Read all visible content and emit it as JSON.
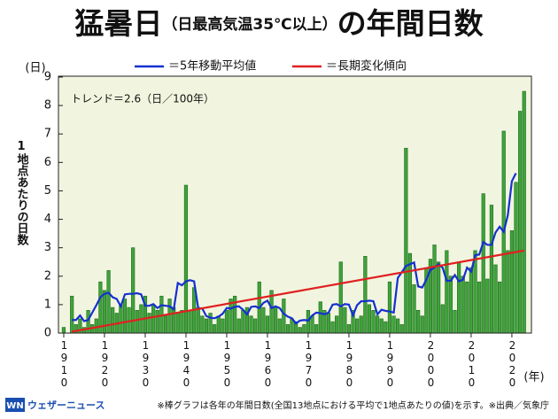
{
  "chart_data": {
    "type": "bar",
    "title": "猛暑日",
    "title_paren": "（日最高気温35℃以上）",
    "title_tail": "の年間日数",
    "y_label": "1地点あたりの日数",
    "y_unit": "(日)",
    "x_unit": "(年)",
    "annotation": "トレンド＝2.6（日／100年）",
    "footnote": "※棒グラフは各年の年間日数(全国13地点における平均で1地点あたりの値)を示す。※出典／気象庁",
    "logo_mark": "WN",
    "logo_text": "ウェザーニュース",
    "x": [
      1910,
      1911,
      1912,
      1913,
      1914,
      1915,
      1916,
      1917,
      1918,
      1919,
      1920,
      1921,
      1922,
      1923,
      1924,
      1925,
      1926,
      1927,
      1928,
      1929,
      1930,
      1931,
      1932,
      1933,
      1934,
      1935,
      1936,
      1937,
      1938,
      1939,
      1940,
      1941,
      1942,
      1943,
      1944,
      1945,
      1946,
      1947,
      1948,
      1949,
      1950,
      1951,
      1952,
      1953,
      1954,
      1955,
      1956,
      1957,
      1958,
      1959,
      1960,
      1961,
      1962,
      1963,
      1964,
      1965,
      1966,
      1967,
      1968,
      1969,
      1970,
      1971,
      1972,
      1973,
      1974,
      1975,
      1976,
      1977,
      1978,
      1979,
      1980,
      1981,
      1982,
      1983,
      1984,
      1985,
      1986,
      1987,
      1988,
      1989,
      1990,
      1991,
      1992,
      1993,
      1994,
      1995,
      1996,
      1997,
      1998,
      1999,
      2000,
      2001,
      2002,
      2003,
      2004,
      2005,
      2006,
      2007,
      2008,
      2009,
      2010,
      2011,
      2012,
      2013,
      2014,
      2015,
      2016,
      2017,
      2018,
      2019,
      2020,
      2021,
      2022,
      2023
    ],
    "series": [
      {
        "type": "bar",
        "color": "#3fa33a",
        "values": [
          0.2,
          0,
          1.3,
          0.3,
          0.5,
          0.2,
          0.8,
          0.3,
          0.5,
          1.8,
          1.5,
          2.2,
          0.9,
          0.7,
          1.0,
          1.2,
          0.9,
          3.0,
          0.8,
          1.0,
          1.3,
          0.7,
          1.0,
          0.8,
          1.3,
          0.6,
          1.2,
          0.9,
          0.7,
          0.8,
          5.2,
          0.8,
          1.6,
          0.9,
          0.6,
          0.5,
          0.7,
          0.3,
          0.6,
          0.5,
          0.8,
          1.2,
          1.3,
          0.5,
          0.8,
          0.9,
          0.6,
          0.5,
          1.8,
          0.9,
          0.6,
          1.5,
          0.9,
          0.5,
          1.2,
          0.3,
          0.5,
          0.4,
          0.2,
          0.3,
          0.8,
          0.6,
          0.3,
          1.1,
          0.8,
          0.7,
          0.4,
          0.6,
          2.5,
          0.9,
          0.3,
          0.8,
          0.5,
          0.6,
          2.7,
          1.0,
          0.8,
          0.6,
          0.5,
          0.4,
          1.8,
          0.6,
          0.5,
          0.3,
          6.5,
          2.8,
          1.7,
          0.8,
          0.6,
          2.3,
          2.6,
          3.1,
          2.5,
          1.0,
          2.9,
          2.0,
          0.8,
          2.5,
          2.0,
          1.8,
          2.3,
          2.9,
          1.8,
          4.9,
          1.9,
          4.5,
          2.4,
          1.8,
          7.1,
          2.9,
          3.6,
          5.3,
          7.8,
          8.5
        ]
      },
      {
        "type": "line",
        "name": "＝5年移動平均値",
        "color": "#1530d0",
        "values": [
          null,
          null,
          0.46,
          0.46,
          0.62,
          0.42,
          0.46,
          0.72,
          0.98,
          1.26,
          1.38,
          1.42,
          1.26,
          1.2,
          0.94,
          1.36,
          1.38,
          1.38,
          1.4,
          1.36,
          0.96,
          0.96,
          1.02,
          0.88,
          0.98,
          0.96,
          0.94,
          0.84,
          1.76,
          1.68,
          1.82,
          1.86,
          1.82,
          0.88,
          0.86,
          0.6,
          0.54,
          0.52,
          0.58,
          0.68,
          0.88,
          0.86,
          0.92,
          0.94,
          0.82,
          0.66,
          0.92,
          0.94,
          0.88,
          1.06,
          1.14,
          0.88,
          0.94,
          0.88,
          0.68,
          0.58,
          0.52,
          0.34,
          0.44,
          0.46,
          0.44,
          0.62,
          0.72,
          0.7,
          0.66,
          0.72,
          1.0,
          1.02,
          0.94,
          1.02,
          1.0,
          0.62,
          0.98,
          1.12,
          1.12,
          1.14,
          1.12,
          0.66,
          0.82,
          0.78,
          0.76,
          0.72,
          1.94,
          2.14,
          2.36,
          2.42,
          2.48,
          1.64,
          1.6,
          1.88,
          2.22,
          2.3,
          2.42,
          2.3,
          1.84,
          1.84,
          2.04,
          1.82,
          1.88,
          2.3,
          2.16,
          2.74,
          2.76,
          3.2,
          3.1,
          3.1,
          3.54,
          3.74,
          3.56,
          4.14,
          5.34,
          5.62,
          null,
          null
        ]
      },
      {
        "type": "line",
        "name": "＝長期変化傾向",
        "color": "#e02020",
        "x": [
          1912,
          2023
        ],
        "values": [
          0.05,
          2.9
        ]
      }
    ],
    "xlim": [
      1908.7,
      2024.8
    ],
    "xticks": [
      1910,
      1920,
      1930,
      1940,
      1950,
      1960,
      1970,
      1980,
      1990,
      2000,
      2010,
      2020
    ],
    "ylim": [
      0,
      9
    ],
    "yticks": [
      0,
      1,
      2,
      3,
      4,
      5,
      6,
      7,
      8,
      9
    ],
    "grid": false,
    "plot_background": "#f1f5df"
  }
}
